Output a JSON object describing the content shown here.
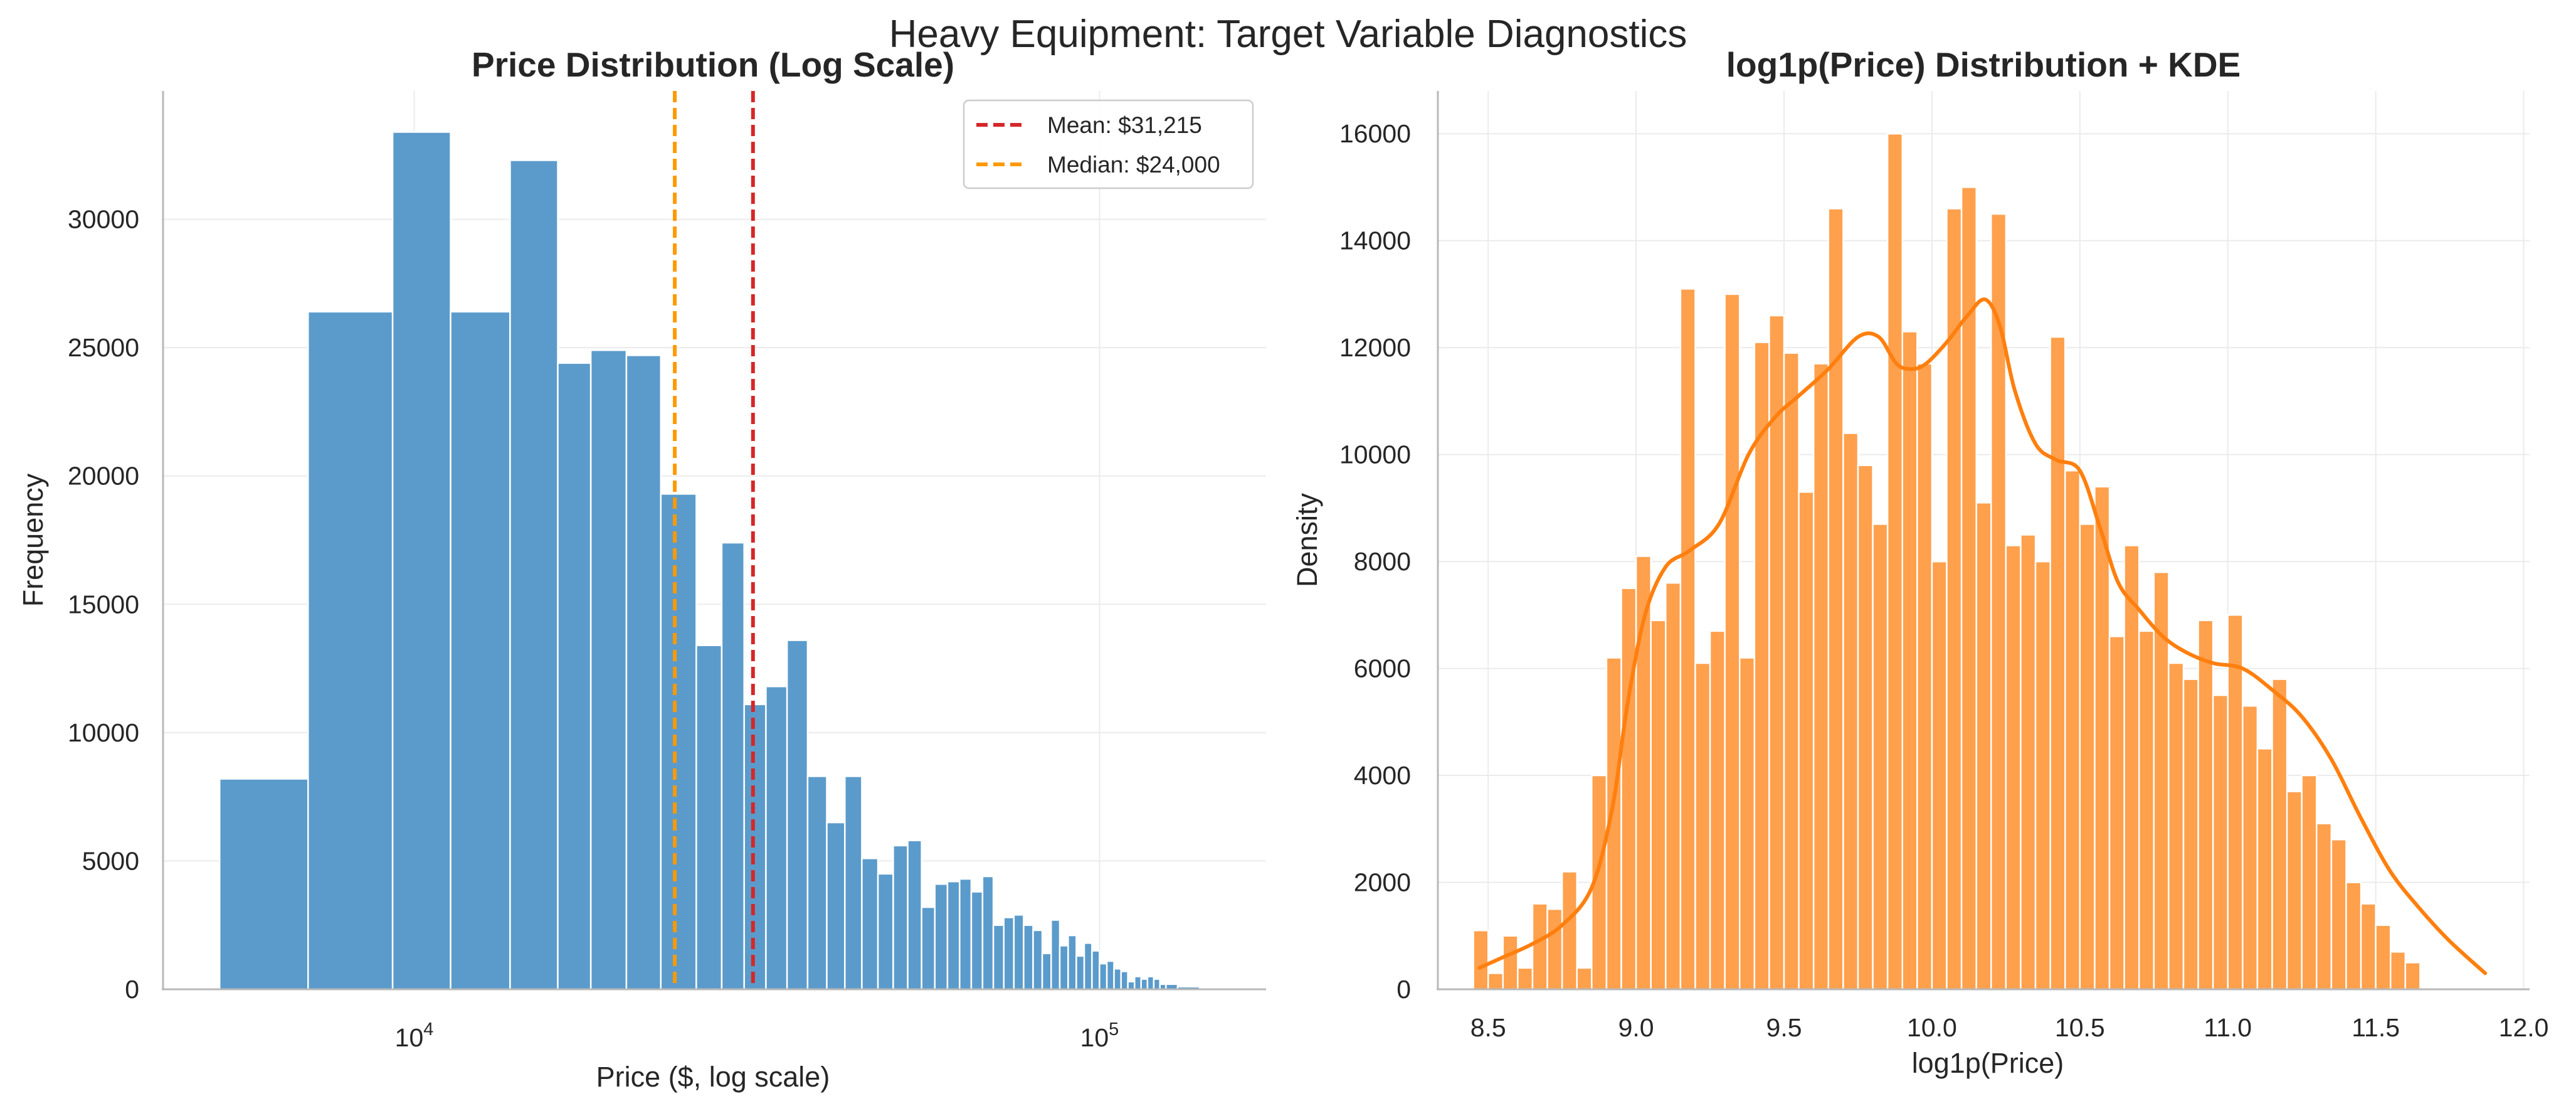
{
  "figure": {
    "suptitle": "Heavy Equipment: Target Variable Diagnostics"
  },
  "chart_data": [
    {
      "type": "bar",
      "title": "Price Distribution (Log Scale)",
      "xlabel": "Price ($, log scale)",
      "ylabel": "Frequency",
      "xscale": "log",
      "xlim": [
        4300,
        175000
      ],
      "ylim": [
        0,
        35000
      ],
      "yticks": [
        0,
        5000,
        10000,
        15000,
        20000,
        25000,
        30000
      ],
      "xticks": [
        {
          "value": 10000,
          "base": "10",
          "exp": "4"
        },
        {
          "value": 100000,
          "base": "10",
          "exp": "5"
        }
      ],
      "grid": true,
      "color": "#5b9bcb",
      "bins": [
        {
          "x0": 5200,
          "x1": 7000,
          "count": 8200
        },
        {
          "x0": 7000,
          "x1": 9300,
          "count": 26400
        },
        {
          "x0": 9300,
          "x1": 11300,
          "count": 33400
        },
        {
          "x0": 11300,
          "x1": 13800,
          "count": 26400
        },
        {
          "x0": 13800,
          "x1": 16200,
          "count": 32300
        },
        {
          "x0": 16200,
          "x1": 18100,
          "count": 24400
        },
        {
          "x0": 18100,
          "x1": 20400,
          "count": 24900
        },
        {
          "x0": 20400,
          "x1": 22900,
          "count": 24700
        },
        {
          "x0": 22900,
          "x1": 25800,
          "count": 19300
        },
        {
          "x0": 25800,
          "x1": 28100,
          "count": 13400
        },
        {
          "x0": 28100,
          "x1": 30300,
          "count": 17400
        },
        {
          "x0": 30300,
          "x1": 32600,
          "count": 11100
        },
        {
          "x0": 32600,
          "x1": 35000,
          "count": 11800
        },
        {
          "x0": 35000,
          "x1": 37500,
          "count": 13600
        },
        {
          "x0": 37500,
          "x1": 40000,
          "count": 8300
        },
        {
          "x0": 40000,
          "x1": 42500,
          "count": 6500
        },
        {
          "x0": 42500,
          "x1": 45000,
          "count": 8300
        },
        {
          "x0": 45000,
          "x1": 47500,
          "count": 5100
        },
        {
          "x0": 47500,
          "x1": 50000,
          "count": 4500
        },
        {
          "x0": 50000,
          "x1": 52500,
          "count": 5600
        },
        {
          "x0": 52500,
          "x1": 55000,
          "count": 5800
        },
        {
          "x0": 55000,
          "x1": 57500,
          "count": 3200
        },
        {
          "x0": 57500,
          "x1": 60000,
          "count": 4100
        },
        {
          "x0": 60000,
          "x1": 62500,
          "count": 4200
        },
        {
          "x0": 62500,
          "x1": 65000,
          "count": 4300
        },
        {
          "x0": 65000,
          "x1": 67500,
          "count": 3800
        },
        {
          "x0": 67500,
          "x1": 70000,
          "count": 4400
        },
        {
          "x0": 70000,
          "x1": 72500,
          "count": 2500
        },
        {
          "x0": 72500,
          "x1": 75000,
          "count": 2800
        },
        {
          "x0": 75000,
          "x1": 77500,
          "count": 2900
        },
        {
          "x0": 77500,
          "x1": 80000,
          "count": 2500
        },
        {
          "x0": 80000,
          "x1": 82500,
          "count": 2300
        },
        {
          "x0": 82500,
          "x1": 85000,
          "count": 1400
        },
        {
          "x0": 85000,
          "x1": 87500,
          "count": 2700
        },
        {
          "x0": 87500,
          "x1": 90000,
          "count": 1700
        },
        {
          "x0": 90000,
          "x1": 92500,
          "count": 2100
        },
        {
          "x0": 92500,
          "x1": 95000,
          "count": 1300
        },
        {
          "x0": 95000,
          "x1": 97500,
          "count": 1800
        },
        {
          "x0": 97500,
          "x1": 100000,
          "count": 1500
        },
        {
          "x0": 100000,
          "x1": 102500,
          "count": 1000
        },
        {
          "x0": 102500,
          "x1": 105000,
          "count": 1100
        },
        {
          "x0": 105000,
          "x1": 107500,
          "count": 800
        },
        {
          "x0": 107500,
          "x1": 110000,
          "count": 700
        },
        {
          "x0": 110000,
          "x1": 112500,
          "count": 300
        },
        {
          "x0": 112500,
          "x1": 115000,
          "count": 500
        },
        {
          "x0": 115000,
          "x1": 117500,
          "count": 400
        },
        {
          "x0": 117500,
          "x1": 120000,
          "count": 500
        },
        {
          "x0": 120000,
          "x1": 122500,
          "count": 400
        },
        {
          "x0": 122500,
          "x1": 125000,
          "count": 200
        },
        {
          "x0": 125000,
          "x1": 130000,
          "count": 200
        },
        {
          "x0": 130000,
          "x1": 140000,
          "count": 100
        },
        {
          "x0": 140000,
          "x1": 150000,
          "count": 50
        }
      ],
      "reference_lines": [
        {
          "label": "Mean: $31,215",
          "value": 31215,
          "color": "#d62728",
          "style": "dashed"
        },
        {
          "label": "Median: $24,000",
          "value": 24000,
          "color": "#ff9900",
          "style": "dashed"
        }
      ],
      "legend": {
        "position": "top-right"
      }
    },
    {
      "type": "bar",
      "title": "log1p(Price) Distribution + KDE",
      "xlabel": "log1p(Price)",
      "ylabel": "Density",
      "xlim": [
        8.33,
        12.02
      ],
      "ylim": [
        0,
        16800
      ],
      "xticks": [
        "8.5",
        "9.0",
        "9.5",
        "10.0",
        "10.5",
        "11.0",
        "11.5",
        "12.0"
      ],
      "yticks": [
        0,
        2000,
        4000,
        6000,
        8000,
        10000,
        12000,
        14000,
        16000
      ],
      "grid": true,
      "color": "#ffa04d",
      "bin_start": 8.45,
      "bin_width": 0.05,
      "counts": [
        1100,
        300,
        1000,
        400,
        1600,
        1500,
        2200,
        400,
        4000,
        6200,
        7500,
        8100,
        6900,
        7600,
        13100,
        6100,
        6700,
        13000,
        6200,
        12100,
        12600,
        11900,
        9300,
        11700,
        14600,
        10400,
        9800,
        8700,
        16000,
        12300,
        11700,
        8000,
        14600,
        15000,
        9100,
        14500,
        8300,
        8500,
        8000,
        12200,
        9700,
        8700,
        9400,
        6600,
        8300,
        6700,
        7800,
        6100,
        5800,
        6900,
        5500,
        7000,
        5300,
        4500,
        5800,
        3700,
        4000,
        3100,
        2800,
        2000,
        1600,
        1200,
        700,
        500
      ],
      "kde": {
        "color": "#ff7f0e",
        "x": [
          8.47,
          8.55,
          8.65,
          8.75,
          8.85,
          8.92,
          8.97,
          9.03,
          9.1,
          9.18,
          9.28,
          9.38,
          9.47,
          9.55,
          9.65,
          9.75,
          9.82,
          9.88,
          9.93,
          9.98,
          10.05,
          10.12,
          10.18,
          10.23,
          10.28,
          10.35,
          10.42,
          10.5,
          10.57,
          10.63,
          10.7,
          10.78,
          10.86,
          10.95,
          11.05,
          11.15,
          11.25,
          11.35,
          11.45,
          11.55,
          11.65,
          11.75,
          11.87
        ],
        "y": [
          400,
          600,
          850,
          1200,
          1900,
          3400,
          5300,
          7000,
          7900,
          8200,
          8700,
          10000,
          10700,
          11100,
          11600,
          12200,
          12200,
          11700,
          11600,
          11700,
          12100,
          12600,
          12900,
          12400,
          11200,
          10200,
          9900,
          9700,
          8600,
          7600,
          7100,
          6600,
          6300,
          6100,
          6000,
          5600,
          5100,
          4300,
          3200,
          2200,
          1500,
          900,
          300
        ]
      }
    }
  ]
}
